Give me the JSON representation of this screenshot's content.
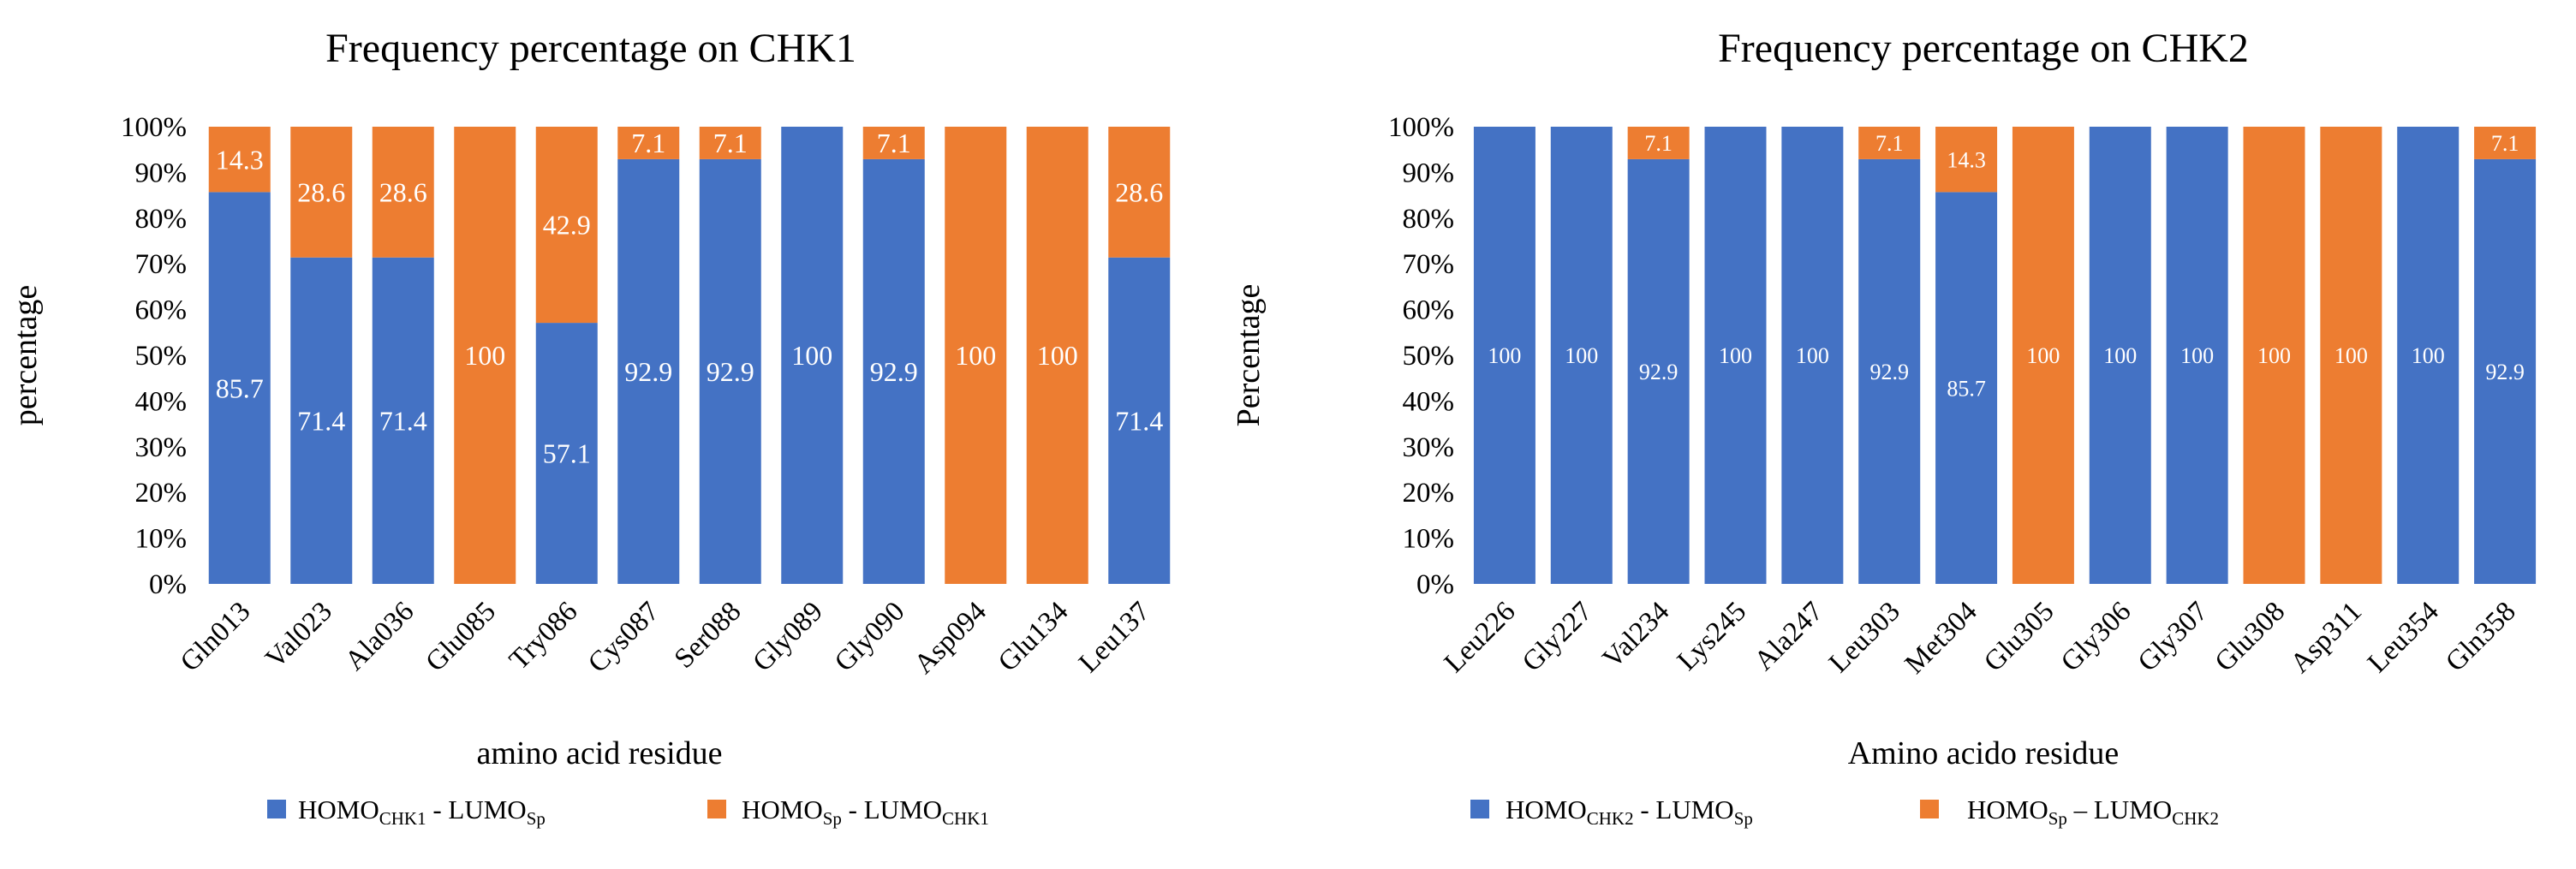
{
  "chart_data": [
    {
      "type": "bar",
      "stacked": true,
      "title": "Frequency  percentage  on CHK1",
      "xlabel": "amino acid residue",
      "ylabel": "percentage",
      "ylim": [
        0,
        100
      ],
      "yticks": [
        "0%",
        "10%",
        "20%",
        "30%",
        "40%",
        "50%",
        "60%",
        "70%",
        "80%",
        "90%",
        "100%"
      ],
      "categories": [
        "Gln013",
        "Val023",
        "Ala036",
        "Glu085",
        "Try086",
        "Cys087",
        "Ser088",
        "Gly089",
        "Gly090",
        "Asp094",
        "Glu134",
        "Leu137"
      ],
      "series": [
        {
          "name": "HOMO_CHK1 - LUMO_Sp",
          "legend_main": "HOMO",
          "legend_sub1": "CHK1",
          "legend_mid": " - LUMO",
          "legend_sub2": "Sp",
          "color": "#4472C4",
          "values": [
            85.7,
            71.4,
            71.4,
            0,
            57.1,
            92.9,
            92.9,
            100,
            92.9,
            0,
            0,
            71.4
          ],
          "labels": [
            "85.7",
            "71.4",
            "71.4",
            "",
            "57.1",
            "92.9",
            "92.9",
            "100",
            "92.9",
            "",
            "",
            "71.4"
          ]
        },
        {
          "name": "HOMO_Sp - LUMO_CHK1",
          "legend_main": "HOMO",
          "legend_sub1": "Sp",
          "legend_mid": " - LUMO",
          "legend_sub2": "CHK1",
          "color": "#ED7D31",
          "values": [
            14.3,
            28.6,
            28.6,
            100,
            42.9,
            7.1,
            7.1,
            0,
            7.1,
            100,
            100,
            28.6
          ],
          "labels": [
            "14.3",
            "28.6",
            "28.6",
            "100",
            "42.9",
            "7.1",
            "7.1",
            "",
            "7.1",
            "100",
            "100",
            "28.6"
          ]
        }
      ]
    },
    {
      "type": "bar",
      "stacked": true,
      "title": "Frequency  percentage  on CHK2",
      "xlabel": "Amino acido residue",
      "ylabel": "Percentage",
      "ylim": [
        0,
        100
      ],
      "yticks": [
        "0%",
        "10%",
        "20%",
        "30%",
        "40%",
        "50%",
        "60%",
        "70%",
        "80%",
        "90%",
        "100%"
      ],
      "categories": [
        "Leu226",
        "Gly227",
        "Val234",
        "Lys245",
        "Ala247",
        "Leu303",
        "Met304",
        "Glu305",
        "Gly306",
        "Gly307",
        "Glu308",
        "Asp311",
        "Leu354",
        "Gln358"
      ],
      "series": [
        {
          "name": "HOMO_CHK2 - LUMO_Sp",
          "legend_main": "HOMO",
          "legend_sub1": "CHK2",
          "legend_mid": " - LUMO",
          "legend_sub2": "Sp",
          "color": "#4472C4",
          "values": [
            100,
            100,
            92.9,
            100,
            100,
            92.9,
            85.7,
            0,
            100,
            100,
            0,
            0,
            100,
            92.9
          ],
          "labels": [
            "100",
            "100",
            "92.9",
            "100",
            "100",
            "92.9",
            "85.7",
            "",
            "100",
            "100",
            "",
            "",
            "100",
            "92.9"
          ]
        },
        {
          "name": "HOMO_Sp – LUMO_CHK2",
          "legend_main": "HOMO",
          "legend_sub1": "Sp",
          "legend_mid": " – LUMO",
          "legend_sub2": "CHK2",
          "color": "#ED7D31",
          "values": [
            0,
            0,
            7.1,
            0,
            0,
            7.1,
            14.3,
            100,
            0,
            0,
            100,
            100,
            0,
            7.1
          ],
          "labels": [
            "",
            "",
            "7.1",
            "",
            "",
            "7.1",
            "14.3",
            "100",
            "",
            "",
            "100",
            "100",
            "",
            "7.1"
          ]
        }
      ]
    }
  ]
}
